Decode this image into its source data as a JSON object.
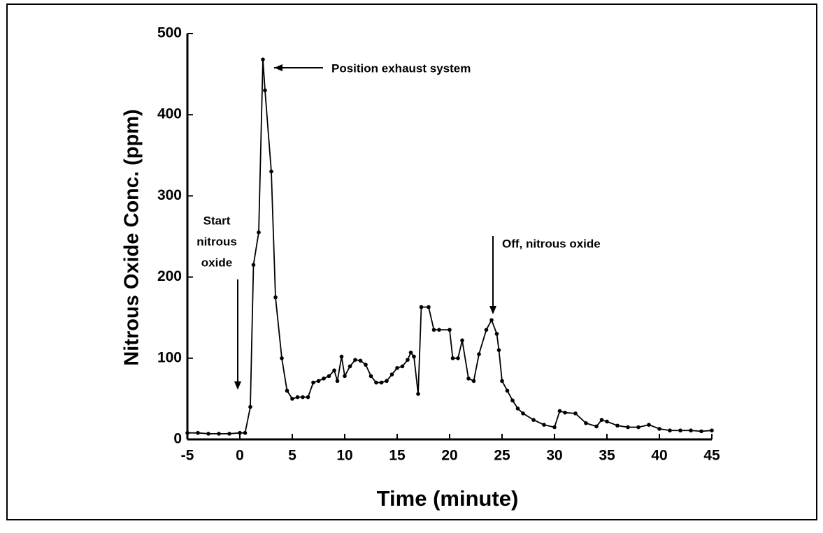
{
  "chart_data": {
    "type": "line",
    "x_label": "Time (minute)",
    "y_label": "Nitrous Oxide Conc. (ppm)",
    "annotations": [
      {
        "text": "Position exhaust system"
      },
      {
        "lines": [
          "Start",
          "nitrous",
          "oxide"
        ]
      },
      {
        "text": "Off, nitrous oxide"
      }
    ],
    "x": [
      -5,
      -4,
      -3,
      -2,
      -1,
      0,
      0.5,
      1,
      1.3,
      1.8,
      2.2,
      2.4,
      3,
      3.4,
      4,
      4.5,
      5,
      5.5,
      6,
      6.5,
      7,
      7.5,
      8,
      8.5,
      9,
      9.3,
      9.7,
      10,
      10.5,
      11,
      11.5,
      12,
      12.5,
      13,
      13.5,
      14,
      14.5,
      15,
      15.5,
      16,
      16.3,
      16.6,
      17,
      17.3,
      18,
      18.5,
      19,
      20,
      20.3,
      20.8,
      21.2,
      21.8,
      22.3,
      22.8,
      23.5,
      24,
      24.5,
      24.7,
      25,
      25.5,
      26,
      26.5,
      27,
      28,
      29,
      30,
      30.5,
      31,
      32,
      33,
      34,
      34.5,
      35,
      36,
      37,
      38,
      39,
      40,
      41,
      42,
      43,
      44,
      45
    ],
    "values": [
      8,
      8,
      7,
      7,
      7,
      8,
      8,
      40,
      215,
      255,
      468,
      430,
      330,
      175,
      100,
      60,
      50,
      52,
      52,
      52,
      70,
      72,
      75,
      78,
      85,
      72,
      102,
      78,
      90,
      98,
      97,
      92,
      78,
      70,
      70,
      72,
      80,
      88,
      90,
      98,
      107,
      102,
      56,
      163,
      163,
      135,
      135,
      135,
      100,
      100,
      122,
      75,
      72,
      105,
      135,
      147,
      130,
      110,
      72,
      60,
      48,
      38,
      32,
      24,
      18,
      15,
      35,
      33,
      32,
      20,
      16,
      24,
      22,
      17,
      15,
      15,
      18,
      13,
      11,
      11,
      11,
      10,
      11
    ],
    "color": "#000000",
    "xlim": [
      -5,
      45
    ],
    "ylim": [
      0,
      500
    ],
    "xticks": [
      -5,
      0,
      5,
      10,
      15,
      20,
      25,
      30,
      35,
      40,
      45
    ],
    "yticks": [
      0,
      100,
      200,
      300,
      400,
      500
    ],
    "grid": false
  }
}
